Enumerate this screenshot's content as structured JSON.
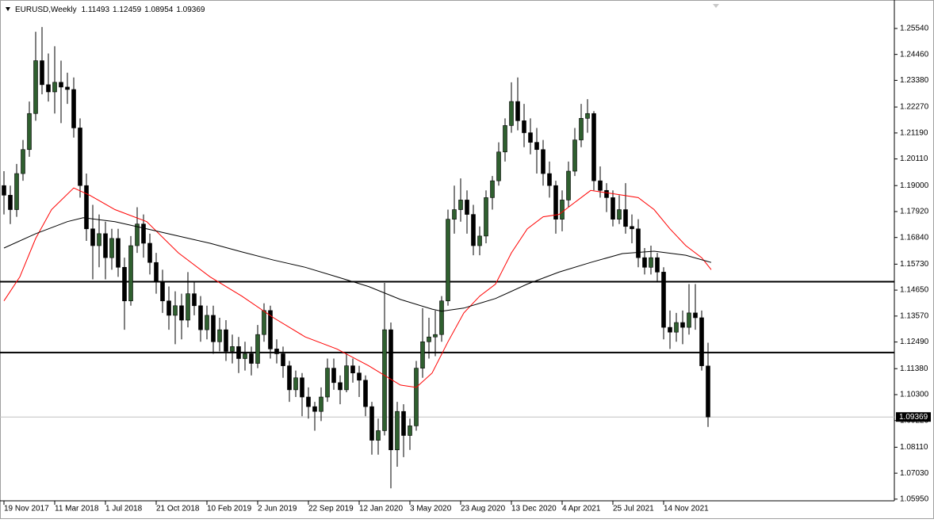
{
  "chart_data": {
    "type": "candlestick",
    "title": "EURUSD,Weekly",
    "x": [
      0,
      2,
      4,
      6,
      8,
      10,
      12,
      14,
      16,
      18,
      20,
      22,
      24,
      26,
      28,
      30,
      32,
      34,
      36,
      38,
      40,
      42,
      44,
      46,
      48,
      50,
      52,
      54,
      56,
      58,
      60,
      62,
      64,
      66,
      68,
      70,
      72,
      74,
      76,
      78,
      80,
      82,
      84,
      86,
      88,
      90,
      92,
      94,
      96,
      98,
      100,
      102,
      104,
      106,
      108,
      110,
      112,
      114,
      116,
      118,
      120,
      122,
      124,
      126,
      128,
      130,
      132,
      134,
      136,
      138,
      140,
      142,
      144,
      146,
      148,
      150,
      152,
      154,
      156,
      158,
      160,
      162,
      164,
      166,
      168,
      170,
      172,
      174,
      176,
      178,
      180,
      182,
      184,
      186,
      188,
      190,
      192,
      194,
      196,
      198,
      200,
      202,
      204,
      206,
      208,
      210,
      212,
      214,
      216,
      218,
      220,
      222
    ],
    "open": [
      1.19,
      1.186,
      1.18,
      1.195,
      1.205,
      1.22,
      1.242,
      1.232,
      1.229,
      1.233,
      1.231,
      1.23,
      1.214,
      1.19,
      1.172,
      1.165,
      1.17,
      1.16,
      1.168,
      1.156,
      1.142,
      1.165,
      1.174,
      1.166,
      1.158,
      1.15,
      1.142,
      1.136,
      1.14,
      1.134,
      1.145,
      1.14,
      1.13,
      1.136,
      1.125,
      1.13,
      1.121,
      1.123,
      1.118,
      1.12,
      1.116,
      1.128,
      1.138,
      1.122,
      1.12,
      1.115,
      1.105,
      1.11,
      1.102,
      1.098,
      1.096,
      1.102,
      1.114,
      1.108,
      1.105,
      1.115,
      1.112,
      1.109,
      1.098,
      1.084,
      1.088,
      1.13,
      1.08,
      1.096,
      1.086,
      1.09,
      1.114,
      1.125,
      1.127,
      1.128,
      1.142,
      1.176,
      1.18,
      1.184,
      1.178,
      1.165,
      1.169,
      1.185,
      1.192,
      1.204,
      1.215,
      1.225,
      1.217,
      1.212,
      1.208,
      1.205,
      1.195,
      1.19,
      1.176,
      1.184,
      1.196,
      1.209,
      1.218,
      1.22,
      1.192,
      1.188,
      1.185,
      1.176,
      1.18,
      1.173,
      1.172,
      1.16,
      1.156,
      1.16,
      1.154,
      1.131,
      1.129,
      1.133,
      1.131,
      1.137,
      1.135,
      1.11493
    ],
    "high": [
      1.196,
      1.19,
      1.199,
      1.209,
      1.225,
      1.254,
      1.256,
      1.245,
      1.248,
      1.242,
      1.237,
      1.235,
      1.218,
      1.195,
      1.182,
      1.178,
      1.175,
      1.172,
      1.172,
      1.16,
      1.169,
      1.181,
      1.178,
      1.17,
      1.162,
      1.155,
      1.148,
      1.146,
      1.145,
      1.154,
      1.15,
      1.144,
      1.14,
      1.14,
      1.135,
      1.134,
      1.128,
      1.127,
      1.125,
      1.123,
      1.132,
      1.141,
      1.14,
      1.126,
      1.123,
      1.117,
      1.113,
      1.112,
      1.106,
      1.1,
      1.106,
      1.118,
      1.118,
      1.111,
      1.12,
      1.118,
      1.115,
      1.111,
      1.1,
      1.093,
      1.1495,
      1.133,
      1.1,
      1.099,
      1.093,
      1.117,
      1.139,
      1.135,
      1.138,
      1.144,
      1.18,
      1.19,
      1.193,
      1.188,
      1.182,
      1.173,
      1.188,
      1.194,
      1.208,
      1.218,
      1.233,
      1.235,
      1.224,
      1.218,
      1.214,
      1.209,
      1.2,
      1.192,
      1.188,
      1.2,
      1.214,
      1.224,
      1.226,
      1.221,
      1.198,
      1.191,
      1.188,
      1.186,
      1.191,
      1.178,
      1.176,
      1.164,
      1.165,
      1.162,
      1.156,
      1.138,
      1.137,
      1.138,
      1.149,
      1.149,
      1.138,
      1.12459
    ],
    "low": [
      1.178,
      1.174,
      1.177,
      1.192,
      1.202,
      1.217,
      1.228,
      1.225,
      1.22,
      1.216,
      1.224,
      1.21,
      1.185,
      1.167,
      1.151,
      1.156,
      1.151,
      1.155,
      1.152,
      1.13,
      1.14,
      1.162,
      1.16,
      1.153,
      1.145,
      1.137,
      1.13,
      1.124,
      1.126,
      1.131,
      1.136,
      1.125,
      1.126,
      1.12,
      1.121,
      1.117,
      1.116,
      1.112,
      1.113,
      1.111,
      1.114,
      1.125,
      1.118,
      1.116,
      1.11,
      1.1,
      1.102,
      1.094,
      1.093,
      1.088,
      1.092,
      1.1,
      1.105,
      1.099,
      1.104,
      1.108,
      1.102,
      1.094,
      1.078,
      1.078,
      1.086,
      1.064,
      1.073,
      1.077,
      1.08,
      1.088,
      1.11,
      1.118,
      1.119,
      1.125,
      1.14,
      1.17,
      1.175,
      1.17,
      1.161,
      1.161,
      1.166,
      1.18,
      1.19,
      1.2,
      1.212,
      1.213,
      1.206,
      1.203,
      1.195,
      1.19,
      1.185,
      1.17,
      1.171,
      1.181,
      1.194,
      1.206,
      1.212,
      1.188,
      1.185,
      1.179,
      1.173,
      1.174,
      1.17,
      1.166,
      1.156,
      1.153,
      1.153,
      1.15,
      1.126,
      1.122,
      1.125,
      1.124,
      1.128,
      1.13,
      1.113,
      1.08954
    ],
    "close": [
      1.186,
      1.18,
      1.195,
      1.205,
      1.22,
      1.242,
      1.232,
      1.229,
      1.233,
      1.231,
      1.23,
      1.214,
      1.19,
      1.172,
      1.165,
      1.17,
      1.16,
      1.168,
      1.156,
      1.142,
      1.165,
      1.174,
      1.166,
      1.158,
      1.15,
      1.142,
      1.136,
      1.14,
      1.134,
      1.145,
      1.14,
      1.13,
      1.136,
      1.125,
      1.13,
      1.121,
      1.123,
      1.118,
      1.12,
      1.116,
      1.128,
      1.138,
      1.122,
      1.12,
      1.115,
      1.105,
      1.11,
      1.102,
      1.098,
      1.096,
      1.102,
      1.114,
      1.108,
      1.105,
      1.115,
      1.112,
      1.109,
      1.098,
      1.084,
      1.088,
      1.13,
      1.08,
      1.096,
      1.086,
      1.09,
      1.114,
      1.125,
      1.127,
      1.128,
      1.142,
      1.176,
      1.18,
      1.184,
      1.178,
      1.165,
      1.169,
      1.185,
      1.192,
      1.204,
      1.215,
      1.225,
      1.217,
      1.212,
      1.208,
      1.205,
      1.195,
      1.19,
      1.176,
      1.184,
      1.196,
      1.209,
      1.218,
      1.22,
      1.192,
      1.188,
      1.185,
      1.176,
      1.18,
      1.173,
      1.172,
      1.16,
      1.156,
      1.16,
      1.154,
      1.131,
      1.129,
      1.133,
      1.131,
      1.137,
      1.135,
      1.115,
      1.09369
    ],
    "up_color": "#2f5f2f",
    "down_color": "#000000",
    "xlim": [
      -1.25,
      280.75
    ],
    "ylim": [
      1.0588,
      1.2656
    ],
    "yticks": [
      {
        "value": 1.2554,
        "label": "1.25540"
      },
      {
        "value": 1.2446,
        "label": "1.24460"
      },
      {
        "value": 1.2338,
        "label": "1.23380"
      },
      {
        "value": 1.2227,
        "label": "1.22270"
      },
      {
        "value": 1.2119,
        "label": "1.21190"
      },
      {
        "value": 1.2011,
        "label": "1.20110"
      },
      {
        "value": 1.19,
        "label": "1.19000"
      },
      {
        "value": 1.1792,
        "label": "1.17920"
      },
      {
        "value": 1.1684,
        "label": "1.16840"
      },
      {
        "value": 1.1573,
        "label": "1.15730"
      },
      {
        "value": 1.1465,
        "label": "1.14650"
      },
      {
        "value": 1.1357,
        "label": "1.13570"
      },
      {
        "value": 1.1249,
        "label": "1.12490"
      },
      {
        "value": 1.1138,
        "label": "1.11380"
      },
      {
        "value": 1.103,
        "label": "1.10300"
      },
      {
        "value": 1.0922,
        "label": "1.09220"
      },
      {
        "value": 1.0811,
        "label": "1.08110"
      },
      {
        "value": 1.0703,
        "label": "1.07030"
      },
      {
        "value": 1.0595,
        "label": "1.05950"
      }
    ],
    "xticks": [
      {
        "value": 0,
        "label": "19 Nov 2017"
      },
      {
        "value": 16,
        "label": "11 Mar 2018"
      },
      {
        "value": 32,
        "label": "1 Jul 2018"
      },
      {
        "value": 48,
        "label": "21 Oct 2018"
      },
      {
        "value": 64,
        "label": "10 Feb 2019"
      },
      {
        "value": 80,
        "label": "2 Jun 2019"
      },
      {
        "value": 96,
        "label": "22 Sep 2019"
      },
      {
        "value": 112,
        "label": "12 Jan 2020"
      },
      {
        "value": 128,
        "label": "3 May 2020"
      },
      {
        "value": 144,
        "label": "23 Aug 2020"
      },
      {
        "value": 160,
        "label": "13 Dec 2020"
      },
      {
        "value": 176,
        "label": "4 Apr 2021"
      },
      {
        "value": 192,
        "label": "25 Jul 2021"
      },
      {
        "value": 208,
        "label": "14 Nov 2021"
      }
    ],
    "lines": [
      {
        "color": "#ff0000",
        "x": [
          0,
          5,
          10,
          15,
          22,
          27,
          35,
          45,
          55,
          65,
          75,
          85,
          95,
          105,
          115,
          125,
          130,
          135,
          140,
          145,
          150,
          155,
          160,
          165,
          170,
          175,
          180,
          185,
          190,
          195,
          200,
          205,
          210,
          215,
          220,
          223
        ],
        "values": [
          1.142,
          1.152,
          1.168,
          1.18,
          1.189,
          1.186,
          1.18,
          1.175,
          1.162,
          1.152,
          1.144,
          1.135,
          1.127,
          1.122,
          1.115,
          1.107,
          1.106,
          1.112,
          1.125,
          1.137,
          1.144,
          1.149,
          1.162,
          1.172,
          1.177,
          1.178,
          1.183,
          1.188,
          1.187,
          1.186,
          1.185,
          1.18,
          1.172,
          1.165,
          1.16,
          1.155
        ]
      },
      {
        "color": "#000000",
        "x": [
          0,
          10,
          20,
          25,
          35,
          45,
          55,
          65,
          75,
          85,
          95,
          105,
          115,
          125,
          135,
          138,
          145,
          155,
          165,
          175,
          185,
          195,
          205,
          215,
          223
        ],
        "values": [
          1.164,
          1.17,
          1.175,
          1.1766,
          1.175,
          1.172,
          1.169,
          1.166,
          1.1624,
          1.159,
          1.156,
          1.152,
          1.148,
          1.1426,
          1.1386,
          1.1377,
          1.139,
          1.143,
          1.149,
          1.154,
          1.158,
          1.1617,
          1.1627,
          1.161,
          1.158
        ]
      }
    ],
    "hlines": [
      {
        "value": 1.15,
        "color": "#000000"
      },
      {
        "value": 1.1205,
        "color": "#000000"
      }
    ],
    "price_line_color": "#c0c0c0"
  }
}
